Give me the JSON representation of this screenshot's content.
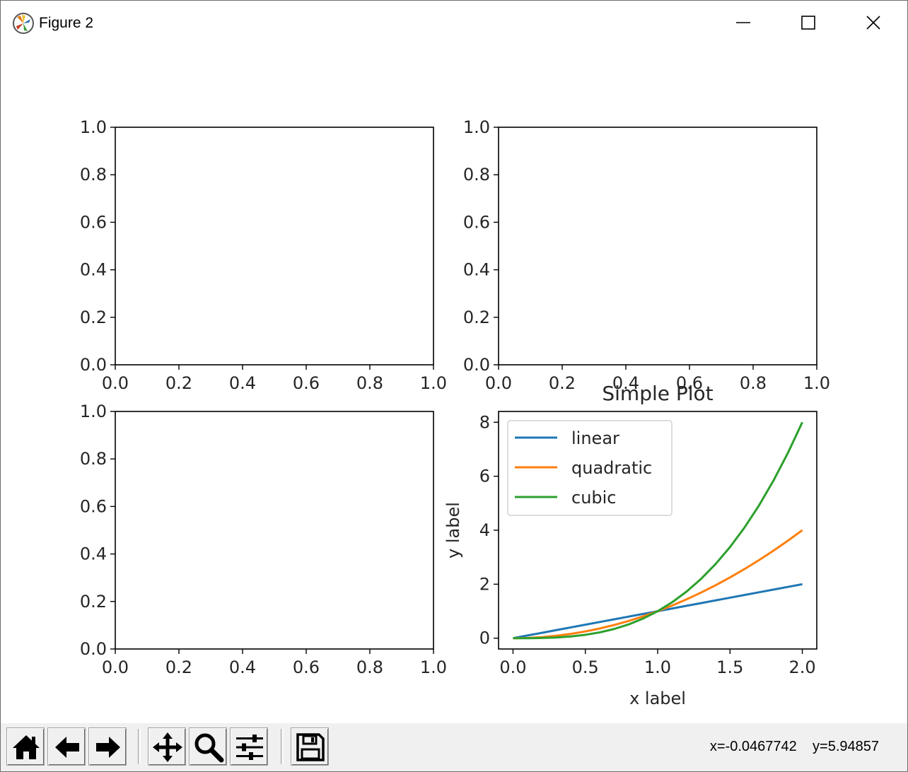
{
  "window": {
    "title": "Figure 2",
    "icons": {
      "app": "matplotlib-icon",
      "minimize": "minimize-icon",
      "maximize": "maximize-icon",
      "close": "close-icon"
    }
  },
  "chart_data": [
    {
      "type": "line",
      "title": "",
      "xlabel": "",
      "ylabel": "",
      "xlim": [
        0,
        1
      ],
      "ylim": [
        0,
        1
      ],
      "xticks": [
        "0.0",
        "0.2",
        "0.4",
        "0.6",
        "0.8",
        "1.0"
      ],
      "yticks": [
        "0.0",
        "0.2",
        "0.4",
        "0.6",
        "0.8",
        "1.0"
      ],
      "series": []
    },
    {
      "type": "line",
      "title": "",
      "xlabel": "",
      "ylabel": "",
      "xlim": [
        0,
        1
      ],
      "ylim": [
        0,
        1
      ],
      "xticks": [
        "0.0",
        "0.2",
        "0.4",
        "0.6",
        "0.8",
        "1.0"
      ],
      "yticks": [
        "0.0",
        "0.2",
        "0.4",
        "0.6",
        "0.8",
        "1.0"
      ],
      "series": []
    },
    {
      "type": "line",
      "title": "",
      "xlabel": "",
      "ylabel": "",
      "xlim": [
        0,
        1
      ],
      "ylim": [
        0,
        1
      ],
      "xticks": [
        "0.0",
        "0.2",
        "0.4",
        "0.6",
        "0.8",
        "1.0"
      ],
      "yticks": [
        "0.0",
        "0.2",
        "0.4",
        "0.6",
        "0.8",
        "1.0"
      ],
      "series": []
    },
    {
      "type": "line",
      "title": "Simple Plot",
      "xlabel": "x label",
      "ylabel": "y label",
      "xlim": [
        -0.1,
        2.1
      ],
      "ylim": [
        -0.4,
        8.4
      ],
      "xticks": [
        "0.0",
        "0.5",
        "1.0",
        "1.5",
        "2.0"
      ],
      "yticks": [
        "0",
        "2",
        "4",
        "6",
        "8"
      ],
      "legend": "upper-left",
      "grid": false,
      "x": [
        0,
        0.1,
        0.2,
        0.3,
        0.4,
        0.5,
        0.6,
        0.7,
        0.8,
        0.9,
        1.0,
        1.1,
        1.2,
        1.3,
        1.4,
        1.5,
        1.6,
        1.7,
        1.8,
        1.9,
        2.0
      ],
      "series": [
        {
          "name": "linear",
          "color": "#1f77b4",
          "values": [
            0,
            0.1,
            0.2,
            0.3,
            0.4,
            0.5,
            0.6,
            0.7,
            0.8,
            0.9,
            1.0,
            1.1,
            1.2,
            1.3,
            1.4,
            1.5,
            1.6,
            1.7,
            1.8,
            1.9,
            2.0
          ]
        },
        {
          "name": "quadratic",
          "color": "#ff7f0e",
          "values": [
            0,
            0.01,
            0.04,
            0.09,
            0.16,
            0.25,
            0.36,
            0.49,
            0.64,
            0.81,
            1.0,
            1.21,
            1.44,
            1.69,
            1.96,
            2.25,
            2.56,
            2.89,
            3.24,
            3.61,
            4.0
          ]
        },
        {
          "name": "cubic",
          "color": "#2ca02c",
          "values": [
            0,
            0.001,
            0.008,
            0.027,
            0.064,
            0.125,
            0.216,
            0.343,
            0.512,
            0.729,
            1.0,
            1.331,
            1.728,
            2.197,
            2.744,
            3.375,
            4.096,
            4.913,
            5.832,
            6.859,
            8.0
          ]
        }
      ]
    }
  ],
  "toolbar": {
    "buttons": [
      {
        "name": "home-button",
        "icon": "home-icon"
      },
      {
        "name": "back-button",
        "icon": "back-arrow-icon"
      },
      {
        "name": "forward-button",
        "icon": "forward-arrow-icon"
      },
      {
        "name": "pan-button",
        "icon": "move-icon"
      },
      {
        "name": "zoom-button",
        "icon": "magnifier-icon"
      },
      {
        "name": "subplots-button",
        "icon": "sliders-icon"
      },
      {
        "name": "save-button",
        "icon": "floppy-disk-icon"
      }
    ],
    "coordinates": "x=-0.0467742    y=5.94857"
  }
}
